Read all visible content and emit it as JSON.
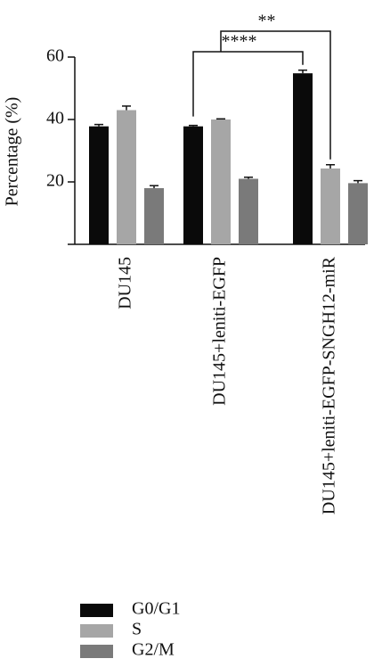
{
  "chart_data": {
    "type": "bar",
    "ylabel": "Percentage (%)",
    "categories": [
      "DU145",
      "DU145+leniti-EGFP",
      "DU145+leniti-EGFP-SNGH12-miR"
    ],
    "series": [
      {
        "name": "G0/G1",
        "color": "#0a0a0a",
        "values": [
          37.8,
          37.8,
          54.8
        ],
        "errors": [
          0.6,
          0.3,
          1.0
        ]
      },
      {
        "name": "S",
        "color": "#a6a6a6",
        "values": [
          43.0,
          40.0,
          24.3
        ],
        "errors": [
          1.3,
          0.2,
          1.2
        ]
      },
      {
        "name": "G2/M",
        "color": "#7a7a7a",
        "values": [
          18.0,
          21.0,
          19.6
        ],
        "errors": [
          0.8,
          0.5,
          0.8
        ]
      }
    ],
    "ylim": [
      0,
      60
    ],
    "yticks": [
      20,
      40,
      60
    ],
    "annotations": [
      "**",
      "****"
    ]
  }
}
